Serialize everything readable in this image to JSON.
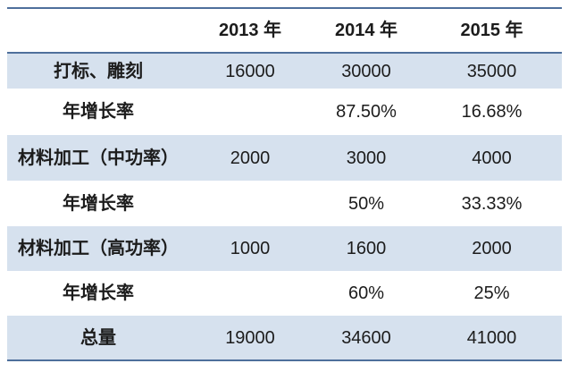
{
  "colors": {
    "accent_border": "#4e6f9c",
    "band_fill": "#d6e1ee",
    "text": "#1c1c1c",
    "background": "#ffffff"
  },
  "table": {
    "columns": [
      "",
      "2013 年",
      "2014 年",
      "2015 年"
    ],
    "rows": [
      {
        "label": "打标、雕刻",
        "values": [
          "16000",
          "30000",
          "35000"
        ]
      },
      {
        "label": "年增长率",
        "values": [
          "",
          "87.50%",
          "16.68%"
        ]
      },
      {
        "label": "材料加工（中功率）",
        "values": [
          "2000",
          "3000",
          "4000"
        ]
      },
      {
        "label": "年增长率",
        "values": [
          "",
          "50%",
          "33.33%"
        ]
      },
      {
        "label": "材料加工（高功率）",
        "values": [
          "1000",
          "1600",
          "2000"
        ]
      },
      {
        "label": "年增长率",
        "values": [
          "",
          "60%",
          "25%"
        ]
      },
      {
        "label": "总量",
        "values": [
          "19000",
          "34600",
          "41000"
        ]
      }
    ]
  }
}
